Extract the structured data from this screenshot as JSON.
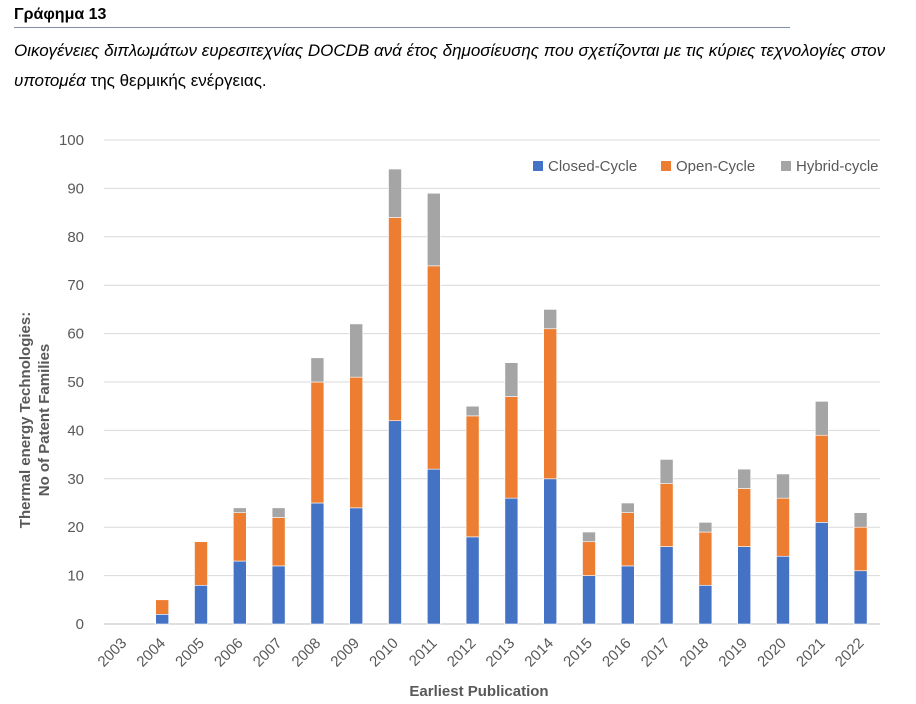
{
  "figure": {
    "label": "Γράφημα 13",
    "caption_italic": "Οικογένειες διπλωμάτων ευρεσιτεχνίας DOCDB ανά έτος δημοσίευσης που σχετίζονται με τις κύριες τεχνολογίες στον υποτομέα",
    "caption_plain": " της θερμικής ενέργειας."
  },
  "chart_data": {
    "type": "bar",
    "stacked": true,
    "categories": [
      "2003",
      "2004",
      "2005",
      "2006",
      "2007",
      "2008",
      "2009",
      "2010",
      "2011",
      "2012",
      "2013",
      "2014",
      "2015",
      "2016",
      "2017",
      "2018",
      "2019",
      "2020",
      "2021",
      "2022"
    ],
    "series": [
      {
        "name": "Closed-Cycle",
        "color": "#4472c4",
        "values": [
          0,
          2,
          8,
          13,
          12,
          25,
          24,
          42,
          32,
          18,
          26,
          30,
          10,
          12,
          16,
          8,
          16,
          14,
          21,
          11
        ]
      },
      {
        "name": "Open-Cycle",
        "color": "#ed7d31",
        "values": [
          0,
          3,
          9,
          10,
          10,
          25,
          27,
          42,
          42,
          25,
          21,
          31,
          7,
          11,
          13,
          11,
          12,
          12,
          18,
          9
        ]
      },
      {
        "name": "Hybrid-cycle",
        "color": "#a5a5a5",
        "values": [
          0,
          0,
          0,
          1,
          2,
          5,
          11,
          10,
          15,
          2,
          7,
          4,
          2,
          2,
          5,
          2,
          4,
          5,
          7,
          3
        ]
      }
    ],
    "ylim": [
      0,
      100
    ],
    "yticks": [
      0,
      10,
      20,
      30,
      40,
      50,
      60,
      70,
      80,
      90,
      100
    ],
    "xlabel": "Earliest Publication",
    "ylabel_line1": "Thermal energy Technologies:",
    "ylabel_line2": "No of Patent Families",
    "grid": true,
    "legend_position": "top-right"
  }
}
